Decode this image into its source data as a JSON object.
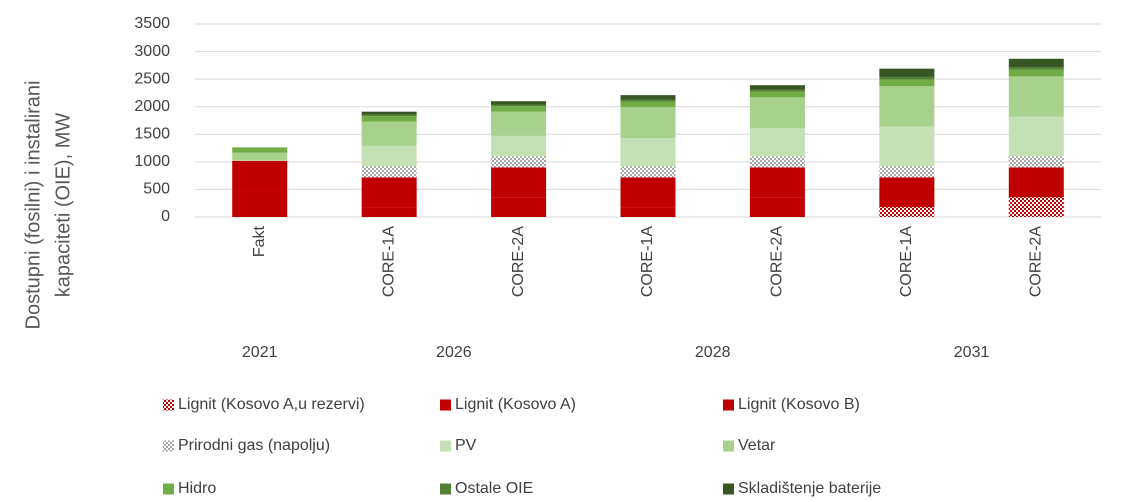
{
  "chart_data": {
    "type": "stacked_bar",
    "ylabel_lines": [
      "Dostupni (fosilni) i instalirani",
      "kapaciteti (OIE), MW"
    ],
    "categories": [
      "Fakt",
      "CORE-1A",
      "CORE-2A",
      "CORE-1A",
      "CORE-2A",
      "CORE-1A",
      "CORE-2A"
    ],
    "groups": [
      {
        "label": "2021",
        "count": 1
      },
      {
        "label": "2026",
        "count": 2
      },
      {
        "label": "2028",
        "count": 2
      },
      {
        "label": "2031",
        "count": 2
      }
    ],
    "ylim": [
      0,
      3500
    ],
    "yticks": [
      0,
      500,
      1000,
      1500,
      2000,
      2500,
      3000,
      3500
    ],
    "grid": true,
    "series": [
      {
        "name": "Lignit (Kosovo A,u rezervi)",
        "color": "#c00000",
        "pattern": true,
        "values": [
          0,
          0,
          0,
          0,
          0,
          180,
          360
        ]
      },
      {
        "name": "Lignit (Kosovo A)",
        "color": "#c00000",
        "values": [
          480,
          180,
          360,
          180,
          360,
          0,
          0
        ]
      },
      {
        "name": "Lignit (Kosovo B)",
        "color": "#c00000",
        "values": [
          540,
          540,
          540,
          540,
          540,
          540,
          540
        ]
      },
      {
        "name": "Prirodni gas (napolju)",
        "color": "#a6a6a6",
        "pattern": true,
        "values": [
          0,
          200,
          200,
          200,
          200,
          200,
          200
        ]
      },
      {
        "name": "PV",
        "color": "#c5e0b4",
        "values": [
          10,
          370,
          370,
          510,
          510,
          720,
          720
        ]
      },
      {
        "name": "Vetar",
        "color": "#a9d18e",
        "values": [
          137,
          440,
          440,
          560,
          560,
          730,
          730
        ]
      },
      {
        "name": "Hidro",
        "color": "#70ad47",
        "values": [
          95,
          100,
          100,
          100,
          100,
          120,
          120
        ]
      },
      {
        "name": "Ostale OIE",
        "color": "#548235",
        "values": [
          0,
          30,
          30,
          40,
          40,
          50,
          50
        ]
      },
      {
        "name": "Skladištenje baterije",
        "color": "#375623",
        "values": [
          0,
          50,
          60,
          80,
          80,
          150,
          150
        ]
      }
    ]
  }
}
